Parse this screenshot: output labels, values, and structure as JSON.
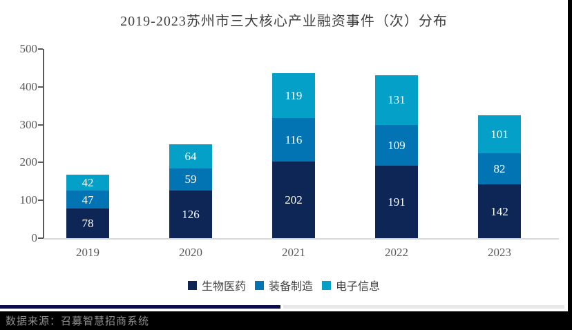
{
  "chart": {
    "title": "2019-2023苏州市三大核心产业融资事件（次）分布"
  },
  "chart_data": {
    "type": "bar",
    "stacked": true,
    "title": "2019-2023苏州市三大核心产业融资事件（次）分布",
    "categories": [
      "2019",
      "2020",
      "2021",
      "2022",
      "2023"
    ],
    "series": [
      {
        "name": "生物医药",
        "color": "#0d2656",
        "values": [
          78,
          126,
          202,
          191,
          142
        ]
      },
      {
        "name": "装备制造",
        "color": "#0274b3",
        "values": [
          47,
          59,
          116,
          109,
          82
        ]
      },
      {
        "name": "电子信息",
        "color": "#05a0c8",
        "values": [
          42,
          64,
          119,
          131,
          101
        ]
      }
    ],
    "totals": [
      167,
      249,
      437,
      431,
      325
    ],
    "ylim": [
      0,
      500
    ],
    "yticks": [
      0,
      100,
      200,
      300,
      400,
      500
    ],
    "xlabel": "",
    "ylabel": "",
    "grid": false,
    "legend_position": "bottom",
    "value_labels": "inside-white"
  },
  "footer": {
    "source": "数据来源：召募智慧招商系统"
  },
  "colors": {
    "axis": "#595959",
    "baseline": "#d9d9d9",
    "title_text": "#3f3f3f",
    "footer_navy_line": "#0c0c49",
    "footer_gray_line": "#e8e8e8",
    "footer_background": "#000000",
    "footer_text": "#8f8f8f"
  }
}
